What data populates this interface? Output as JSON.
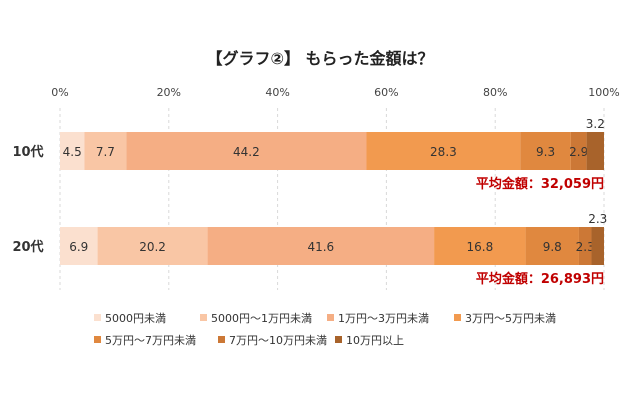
{
  "chart_data": {
    "type": "bar",
    "orientation": "horizontal",
    "stacked": true,
    "percent_stacked": true,
    "title": "【グラフ②】 もらった金額は？",
    "categories": [
      "10代",
      "20代"
    ],
    "x_ticks": [
      "0%",
      "20%",
      "40%",
      "60%",
      "80%",
      "100%"
    ],
    "xlim": [
      0,
      100
    ],
    "grid": true,
    "legend_position": "bottom",
    "series": [
      {
        "name": "5000円未満",
        "values": [
          4.5,
          6.9
        ],
        "labels": [
          "4.5",
          "6.9"
        ],
        "color": "#fbe0cf"
      },
      {
        "name": "5000円～1万円未満",
        "values": [
          7.7,
          20.2
        ],
        "labels": [
          "7.7",
          "20.2"
        ],
        "color": "#f9c6a5"
      },
      {
        "name": "1万円～3万円未満",
        "values": [
          44.2,
          41.6
        ],
        "labels": [
          "44.2",
          "41.6"
        ],
        "color": "#f5ae84"
      },
      {
        "name": "3万円～5万円未満",
        "values": [
          28.3,
          16.8
        ],
        "labels": [
          "28.3",
          "16.8"
        ],
        "color": "#f29a4f"
      },
      {
        "name": "5万円～7万円未満",
        "values": [
          9.3,
          9.8
        ],
        "labels": [
          "9.3",
          "9.8"
        ],
        "color": "#e0883f"
      },
      {
        "name": "7万円～10万円未満",
        "values": [
          2.9,
          2.3
        ],
        "labels": [
          "2.9",
          "2.3"
        ],
        "color": "#cc7836"
      },
      {
        "name": "10万円以上",
        "values": [
          3.2,
          2.3
        ],
        "labels": [
          "3.2",
          "2.3"
        ],
        "color": "#a8632b"
      }
    ],
    "annotations": [
      "平均金額：32,059円",
      "平均金額：26,893円"
    ],
    "annotation_color": "#c00000"
  }
}
